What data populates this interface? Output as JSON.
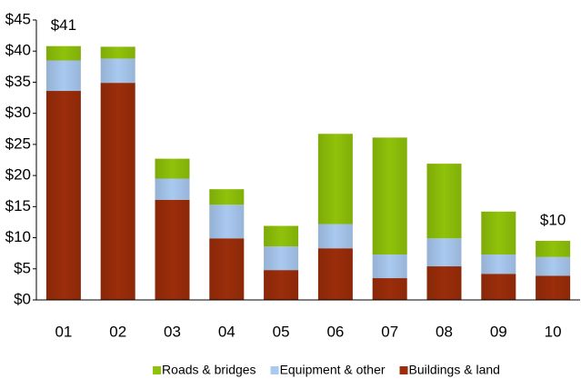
{
  "chart_data": {
    "type": "stacked_bar",
    "categories": [
      "01",
      "02",
      "03",
      "04",
      "05",
      "06",
      "07",
      "08",
      "09",
      "10"
    ],
    "series": [
      {
        "name": "Buildings & land",
        "color": "#9b2d0a",
        "values": [
          33.6,
          34.9,
          16.1,
          9.9,
          4.8,
          8.3,
          3.5,
          5.4,
          4.2,
          3.9
        ]
      },
      {
        "name": "Equipment & other",
        "color": "#a9c9f0",
        "values": [
          4.9,
          3.9,
          3.4,
          5.4,
          3.8,
          3.9,
          3.8,
          4.5,
          3.1,
          3.0
        ]
      },
      {
        "name": "Roads & bridges",
        "color": "#8fc20a",
        "values": [
          2.3,
          1.9,
          3.2,
          2.5,
          3.3,
          14.5,
          18.8,
          12.0,
          6.9,
          2.6
        ]
      }
    ],
    "annotations": [
      {
        "text": "$41",
        "x": "01"
      },
      {
        "text": "$10",
        "x": "10"
      }
    ],
    "ylim": [
      0,
      45
    ],
    "yticks": [
      {
        "value": 0,
        "label": "$0"
      },
      {
        "value": 5,
        "label": "$5"
      },
      {
        "value": 10,
        "label": "$10"
      },
      {
        "value": 15,
        "label": "$15"
      },
      {
        "value": 20,
        "label": "$20"
      },
      {
        "value": 25,
        "label": "$25"
      },
      {
        "value": 30,
        "label": "$30"
      },
      {
        "value": 35,
        "label": "$35"
      },
      {
        "value": 40,
        "label": "$40"
      },
      {
        "value": 45,
        "label": "$45"
      }
    ],
    "grid": false
  }
}
